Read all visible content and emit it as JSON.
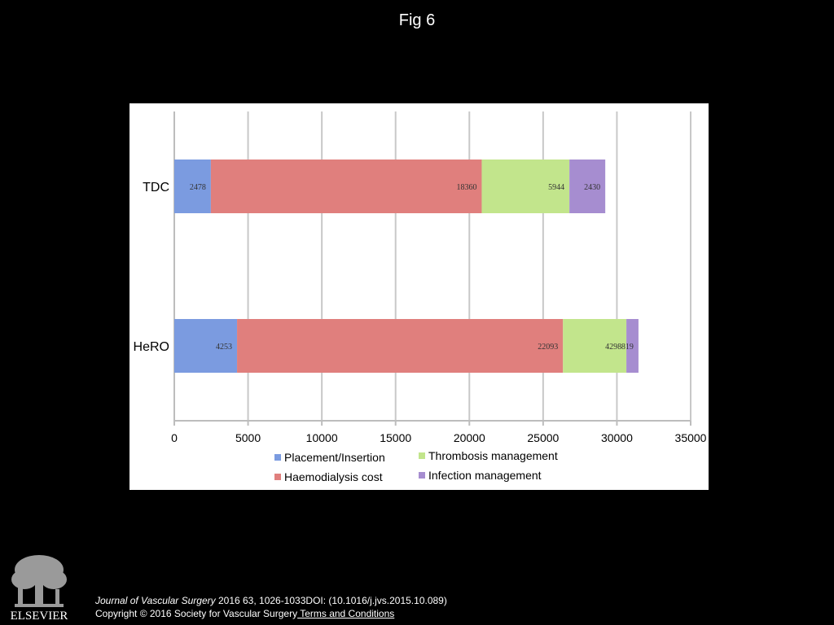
{
  "figure_title": "Fig 6",
  "chart_data": {
    "type": "bar",
    "orientation": "horizontal",
    "stacked": true,
    "categories": [
      "TDC",
      "HeRO"
    ],
    "series": [
      {
        "name": "Placement/Insertion",
        "color": "#7b9be0",
        "values": [
          2478,
          4253
        ]
      },
      {
        "name": "Haemodialysis cost",
        "color": "#e07f7d",
        "values": [
          18360,
          22093
        ]
      },
      {
        "name": "Thrombosis management",
        "color": "#c2e58c",
        "values": [
          5944,
          4298
        ]
      },
      {
        "name": "Infection management",
        "color": "#a68dd0",
        "values": [
          2430,
          819
        ]
      }
    ],
    "value_labels": {
      "TDC": [
        "2478",
        "18360",
        "5944",
        "2430"
      ],
      "HeRO": [
        "4253",
        "22093",
        "4298",
        "819"
      ]
    },
    "x_ticks": [
      "0",
      "5000",
      "10000",
      "15000",
      "20000",
      "25000",
      "30000",
      "35000"
    ],
    "xlim": [
      0,
      35000
    ],
    "grid": "vertical",
    "legend_position": "bottom",
    "title": "",
    "xlabel": "",
    "ylabel": ""
  },
  "citation": {
    "journal": "Journal of Vascular Surgery",
    "details": " 2016 63, 1026-1033DOI: (10.1016/j.jvs.2015.10.089)",
    "copyright": "Copyright © 2016 Society for Vascular Surgery",
    "terms_link": " Terms and Conditions"
  },
  "publisher_logo": {
    "label": "ELSEVIER",
    "icon": "tree-icon"
  }
}
